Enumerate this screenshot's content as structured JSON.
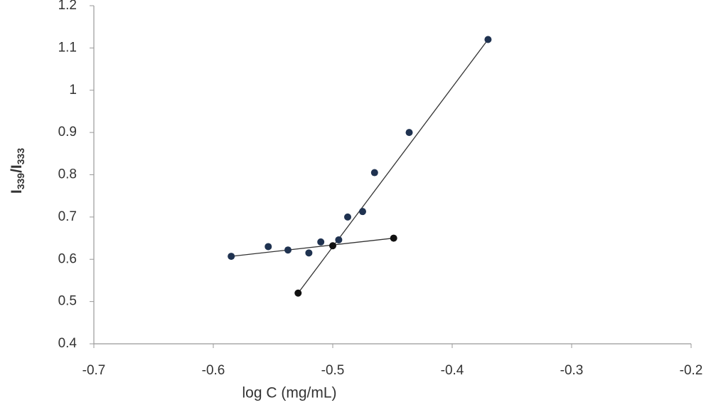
{
  "chart_data": {
    "type": "scatter",
    "xlabel": "log C (mg/mL)",
    "ylabel": [
      "I",
      "339",
      "/I",
      "333"
    ],
    "xlim": [
      -0.7,
      -0.2
    ],
    "xticks": [
      -0.7,
      -0.6,
      -0.5,
      -0.4,
      -0.3,
      -0.2
    ],
    "ylim": [
      0.4,
      1.2
    ],
    "yticks": [
      0.4,
      0.5,
      0.6,
      0.7,
      0.8,
      0.9,
      1,
      1.1,
      1.2
    ],
    "grid": false,
    "series": [
      {
        "color": "#1f3250",
        "x": [
          -0.585,
          -0.554,
          -0.5375,
          -0.52,
          -0.51,
          -0.495,
          -0.4875,
          -0.475,
          -0.465,
          -0.436,
          -0.37
        ],
        "values": [
          0.607,
          0.63,
          0.622,
          0.615,
          0.641,
          0.646,
          0.7,
          0.713,
          0.805,
          0.9,
          1.12
        ]
      },
      {
        "color": "#111111",
        "x": [
          -0.529,
          -0.5,
          -0.449
        ],
        "values": [
          0.52,
          0.632,
          0.65
        ]
      }
    ],
    "trendlines": [
      {
        "color": "#333333",
        "x": [
          -0.585,
          -0.449
        ],
        "values": [
          0.607,
          0.65
        ]
      },
      {
        "color": "#333333",
        "x": [
          -0.529,
          -0.37
        ],
        "values": [
          0.52,
          1.12
        ]
      }
    ]
  }
}
